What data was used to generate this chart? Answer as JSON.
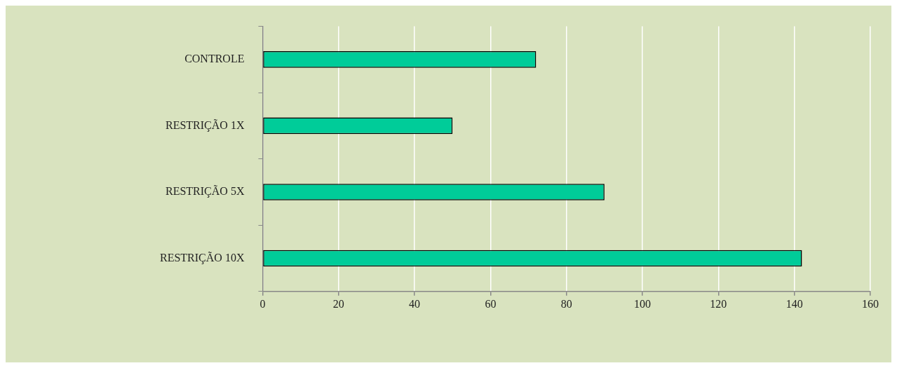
{
  "chart_data": {
    "type": "bar",
    "orientation": "horizontal",
    "categories": [
      "CONTROLE",
      "RESTRIÇÃO 1X",
      "RESTRIÇÃO 5X",
      "RESTRIÇÃO 10X"
    ],
    "values": [
      72,
      50,
      90,
      142
    ],
    "color": "#00cc99",
    "xlim": [
      0,
      160
    ],
    "xticks": [
      0,
      20,
      40,
      60,
      80,
      100,
      120,
      140,
      160
    ],
    "grid": "x",
    "legend": false
  }
}
